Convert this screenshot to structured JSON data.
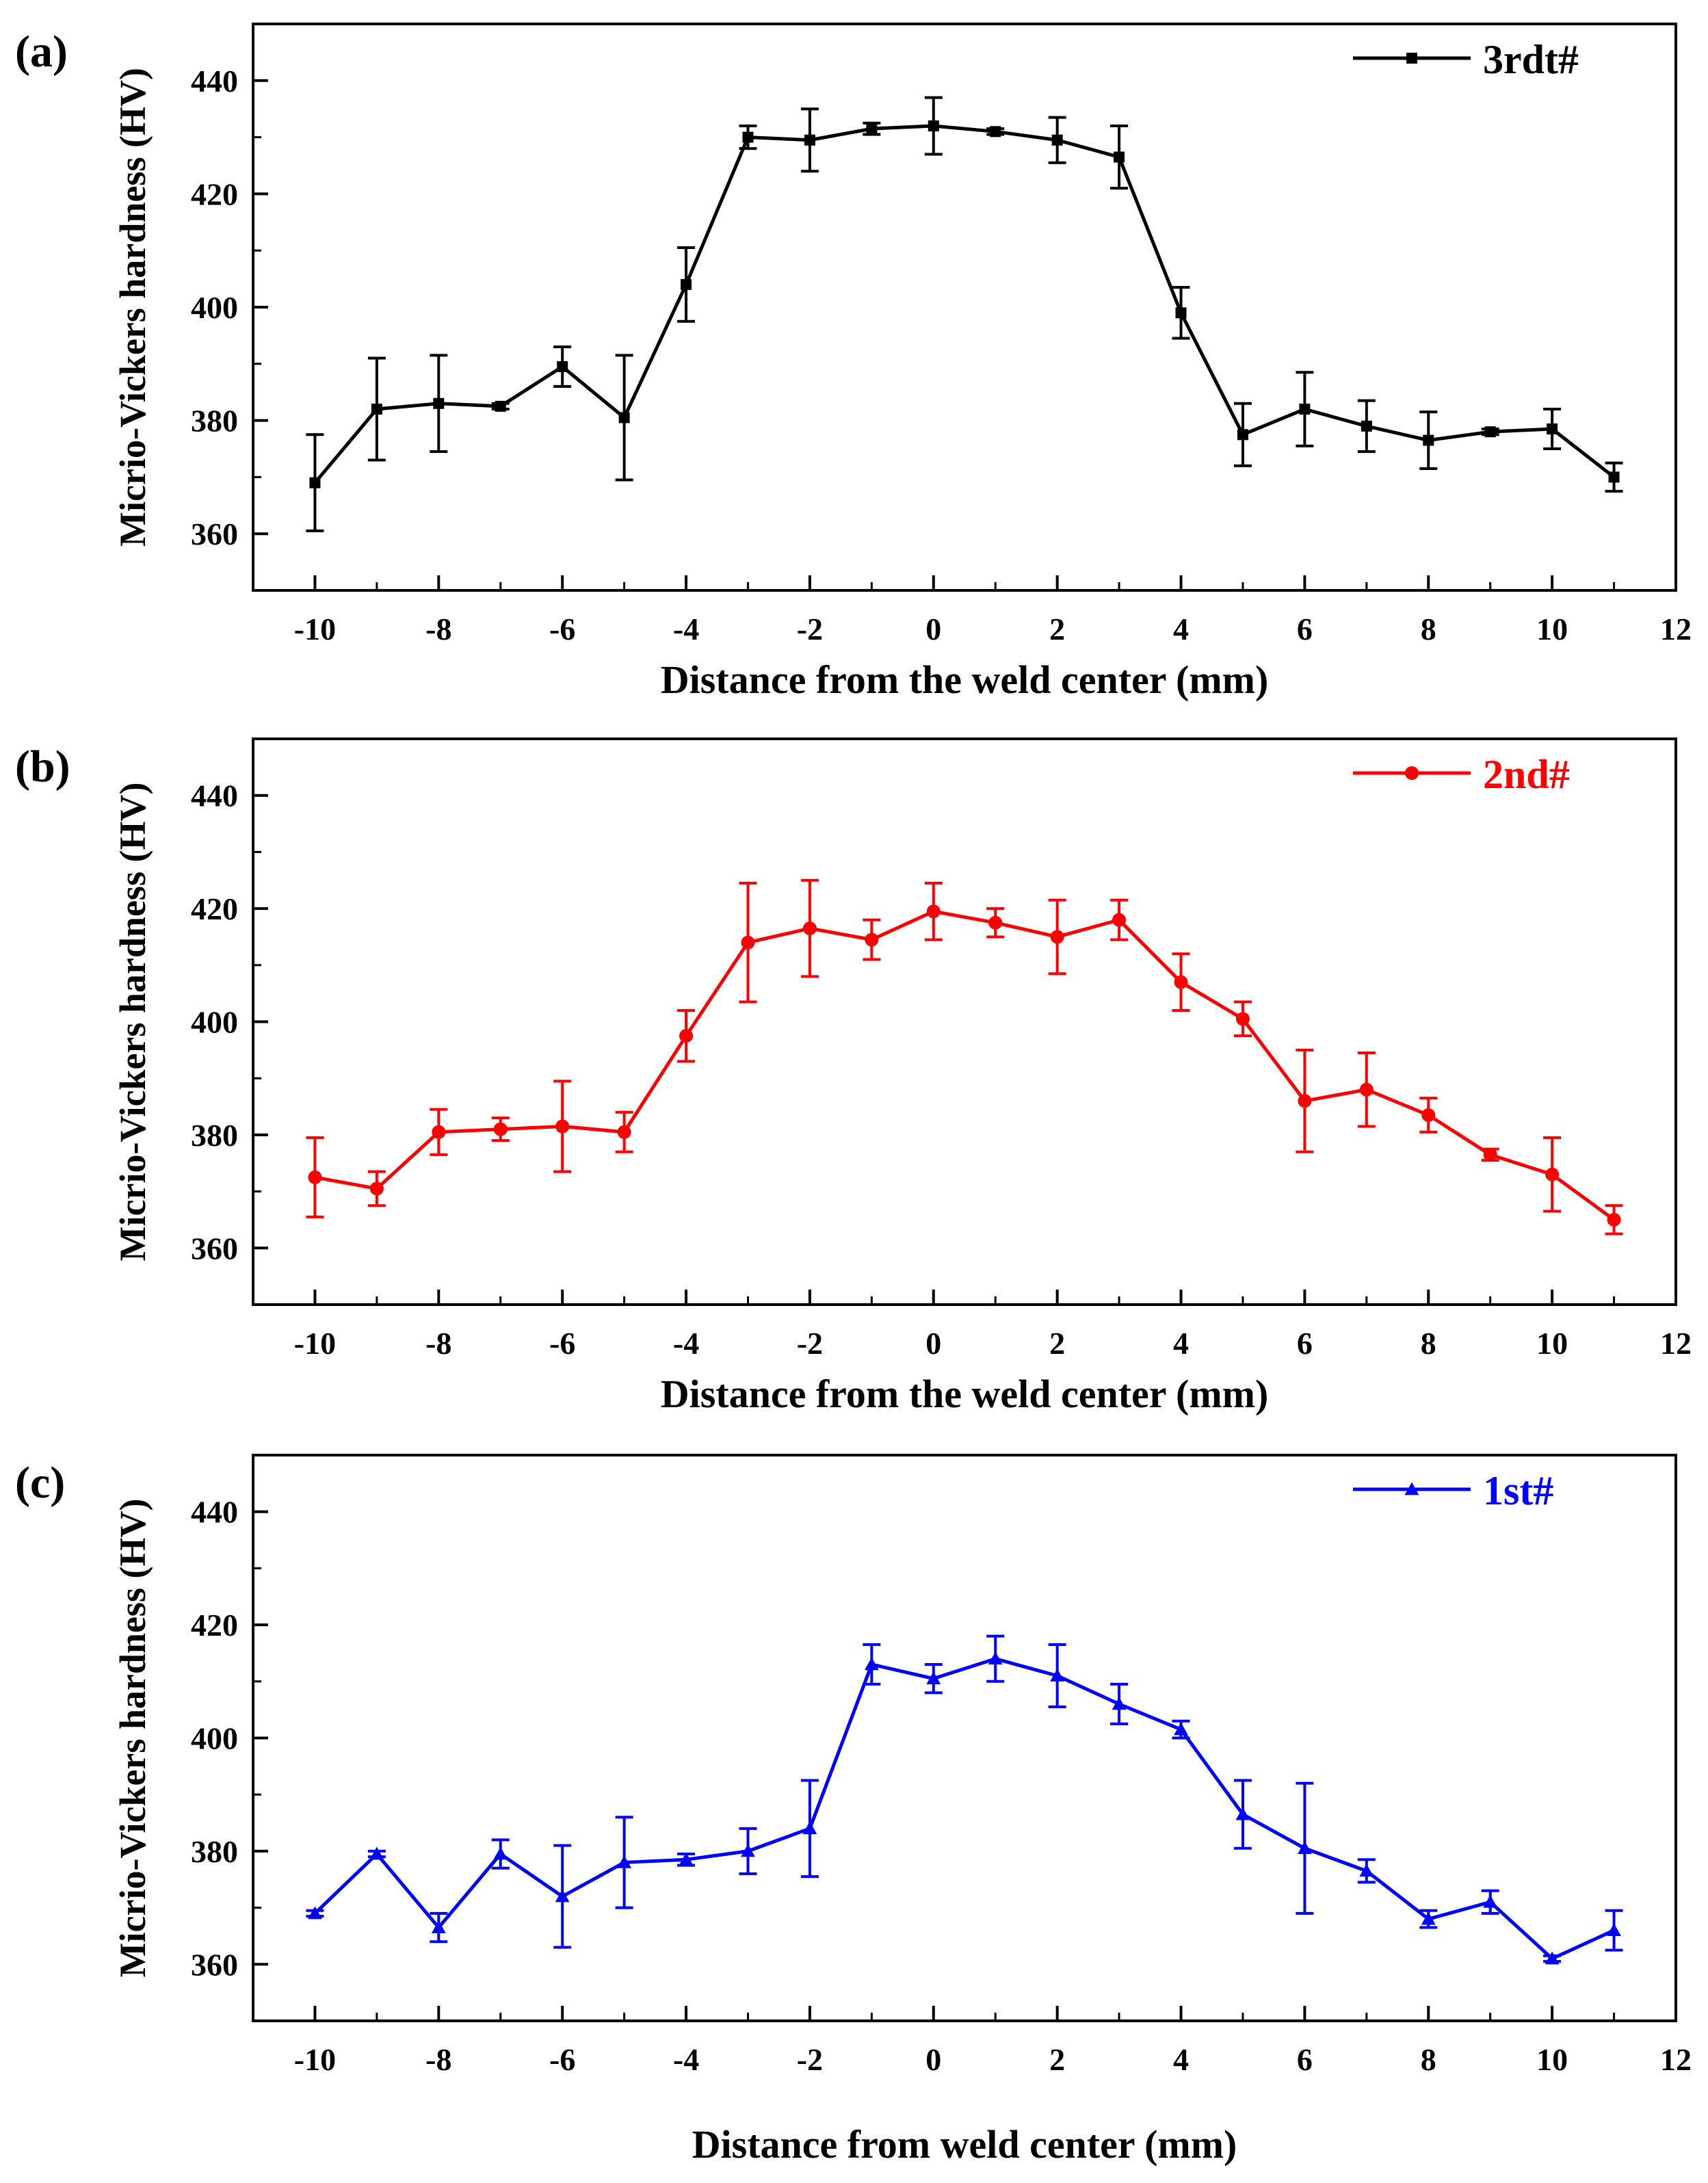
{
  "chart_data": [
    {
      "type": "line",
      "panel_label": "(a)",
      "title": "",
      "xlabel": "Distance from the weld center (mm)",
      "ylabel": "Micrio-Vickers hardness (HV)",
      "xlim": [
        -11,
        12
      ],
      "ylim": [
        350,
        450
      ],
      "xticks": [
        -10,
        -8,
        -6,
        -4,
        -2,
        0,
        2,
        4,
        6,
        8,
        10,
        12
      ],
      "yticks": [
        360,
        380,
        400,
        420,
        440
      ],
      "legend_position": "top-right",
      "series": [
        {
          "name": "3rdt#",
          "color": "#000000",
          "marker": "square",
          "x": [
            -10,
            -9,
            -8,
            -7,
            -6,
            -5,
            -4,
            -3,
            -2,
            -1,
            0,
            1,
            2,
            3,
            4,
            5,
            6,
            7,
            8,
            9,
            10,
            11
          ],
          "y": [
            369,
            382,
            383,
            382.5,
            389.5,
            380.5,
            404,
            430,
            429.5,
            431.5,
            432,
            431,
            429.5,
            426.5,
            399,
            377.5,
            382,
            379,
            376.5,
            378,
            378.5,
            370
          ],
          "err": [
            8.5,
            9,
            8.5,
            0.5,
            3.5,
            11,
            6.5,
            2,
            5.5,
            1,
            5,
            0.5,
            4,
            5.5,
            4.5,
            5.5,
            6.5,
            4.5,
            5,
            0.5,
            3.5,
            2.5
          ]
        }
      ]
    },
    {
      "type": "line",
      "panel_label": "(b)",
      "title": "",
      "xlabel": "Distance from the weld center (mm)",
      "ylabel": "Micrio-Vickers hardness (HV)",
      "xlim": [
        -11,
        12
      ],
      "ylim": [
        350,
        450
      ],
      "xticks": [
        -10,
        -8,
        -6,
        -4,
        -2,
        0,
        2,
        4,
        6,
        8,
        10,
        12
      ],
      "yticks": [
        360,
        380,
        400,
        420,
        440
      ],
      "legend_position": "top-right",
      "series": [
        {
          "name": "2nd#",
          "color": "#ff0000",
          "marker": "circle",
          "x": [
            -10,
            -9,
            -8,
            -7,
            -6,
            -5,
            -4,
            -3,
            -2,
            -1,
            0,
            1,
            2,
            3,
            4,
            5,
            6,
            7,
            8,
            9,
            10,
            11
          ],
          "y": [
            372.5,
            370.5,
            380.5,
            381,
            381.5,
            380.5,
            397.5,
            414,
            416.5,
            414.5,
            419.5,
            417.5,
            415,
            418,
            407,
            400.5,
            386,
            388,
            383.5,
            376.5,
            373,
            365
          ],
          "err": [
            7,
            3,
            4,
            2,
            8,
            3.5,
            4.5,
            10.5,
            8.5,
            3.5,
            5,
            2.5,
            6.5,
            3.5,
            5,
            3,
            9,
            6.5,
            3,
            1,
            6.5,
            2.5
          ]
        }
      ]
    },
    {
      "type": "line",
      "panel_label": "(c)",
      "title": "",
      "xlabel": "Distance from weld center (mm)",
      "ylabel": "Micrio-Vickers hardness (HV)",
      "xlim": [
        -11,
        12
      ],
      "ylim": [
        350,
        450
      ],
      "xticks": [
        -10,
        -8,
        -6,
        -4,
        -2,
        0,
        2,
        4,
        6,
        8,
        10,
        12
      ],
      "yticks": [
        360,
        380,
        400,
        420,
        440
      ],
      "legend_position": "top-right",
      "series": [
        {
          "name": "1st#",
          "color": "#0000ff",
          "marker": "triangle",
          "x": [
            -10,
            -9,
            -8,
            -7,
            -6,
            -5,
            -4,
            -3,
            -2,
            -1,
            0,
            1,
            2,
            3,
            4,
            5,
            6,
            7,
            8,
            9,
            10,
            11
          ],
          "y": [
            369,
            379.5,
            366.5,
            379.5,
            372,
            378,
            378.5,
            380,
            384,
            413,
            410.5,
            414,
            411,
            406,
            401.5,
            386.5,
            380.5,
            376.5,
            368,
            371,
            361,
            366
          ],
          "err": [
            0.5,
            0.5,
            2.5,
            2.5,
            9,
            8,
            1,
            4,
            8.5,
            3.5,
            2.5,
            4,
            5.5,
            3.5,
            1.5,
            6,
            11.5,
            2,
            1.5,
            2,
            0.5,
            3.5
          ]
        }
      ]
    }
  ]
}
